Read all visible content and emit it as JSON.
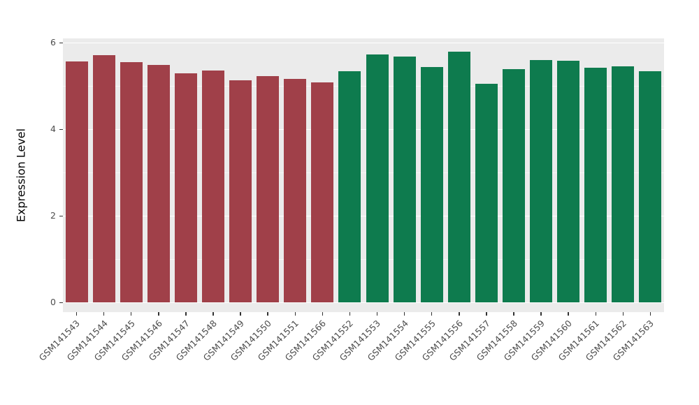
{
  "chart_data": {
    "type": "bar",
    "title": "",
    "xlabel": "",
    "ylabel": "Expression Level",
    "ylim": [
      0,
      6.2
    ],
    "yticks": [
      0,
      2,
      4,
      6
    ],
    "minor_ticks": [
      1,
      3,
      5
    ],
    "grid": "on",
    "legend": "none",
    "categories": [
      "GSM141543",
      "GSM141544",
      "GSM141545",
      "GSM141546",
      "GSM141547",
      "GSM141548",
      "GSM141549",
      "GSM141550",
      "GSM141551",
      "GSM141566",
      "GSM141552",
      "GSM141553",
      "GSM141554",
      "GSM141555",
      "GSM141556",
      "GSM141557",
      "GSM141558",
      "GSM141559",
      "GSM141560",
      "GSM141561",
      "GSM141562",
      "GSM141563"
    ],
    "values": [
      5.56,
      5.71,
      5.55,
      5.48,
      5.29,
      5.35,
      5.13,
      5.23,
      5.16,
      5.08,
      5.34,
      5.73,
      5.68,
      5.44,
      5.79,
      5.05,
      5.39,
      5.6,
      5.58,
      5.42,
      5.45,
      5.34
    ],
    "groups": [
      "red",
      "red",
      "red",
      "red",
      "red",
      "red",
      "red",
      "red",
      "red",
      "red",
      "green",
      "green",
      "green",
      "green",
      "green",
      "green",
      "green",
      "green",
      "green",
      "green",
      "green",
      "green"
    ],
    "colors": {
      "red": "#A04049",
      "green": "#0E7B4E",
      "panel_bg": "#EBEBEB",
      "grid": "#FFFFFF",
      "axis_text": "#4D4D4D",
      "axis_title": "#000000"
    }
  }
}
